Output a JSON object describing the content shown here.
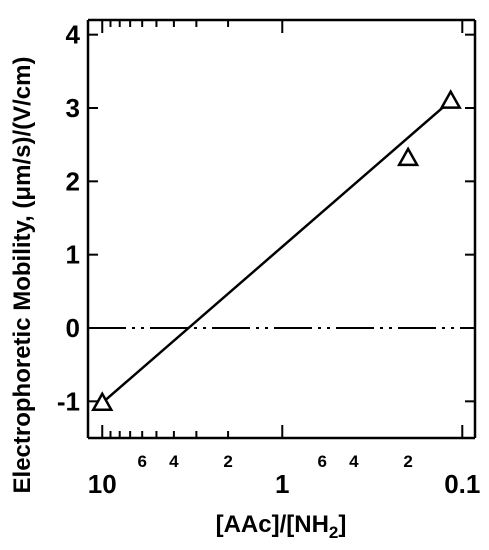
{
  "chart_data": {
    "type": "scatter",
    "xlabel": "[AAc]/[NH2]",
    "ylabel": "Electrophoretic Mobility, (μm/s)/(V/cm)",
    "x_scale": "log",
    "x_reversed": true,
    "xlim": [
      12,
      0.085
    ],
    "ylim": [
      -1.5,
      4.2
    ],
    "y_ticks": [
      -1,
      0,
      1,
      2,
      3,
      4
    ],
    "y_tick_labels": [
      "-1",
      "0",
      "1",
      "2",
      "3",
      "4"
    ],
    "x_major_ticks": [
      10,
      1,
      0.1
    ],
    "x_major_labels": [
      "10",
      "1",
      "0.1"
    ],
    "x_minor_labels": [
      {
        "value": 6,
        "label": "6"
      },
      {
        "value": 4,
        "label": "4"
      },
      {
        "value": 2,
        "label": "2"
      },
      {
        "value": 0.6,
        "label": "6"
      },
      {
        "value": 0.4,
        "label": "4"
      },
      {
        "value": 0.2,
        "label": "2"
      }
    ],
    "series": [
      {
        "marker": "open-triangle",
        "points": [
          {
            "x": 10,
            "y": -1.02
          },
          {
            "x": 0.2,
            "y": 2.32
          },
          {
            "x": 0.116,
            "y": 3.1
          }
        ]
      }
    ],
    "fit_line": {
      "x": [
        10,
        0.116
      ],
      "y": [
        -1.02,
        3.1
      ]
    },
    "reference_line": {
      "y": 0,
      "style": "dash-dot-dot"
    }
  }
}
